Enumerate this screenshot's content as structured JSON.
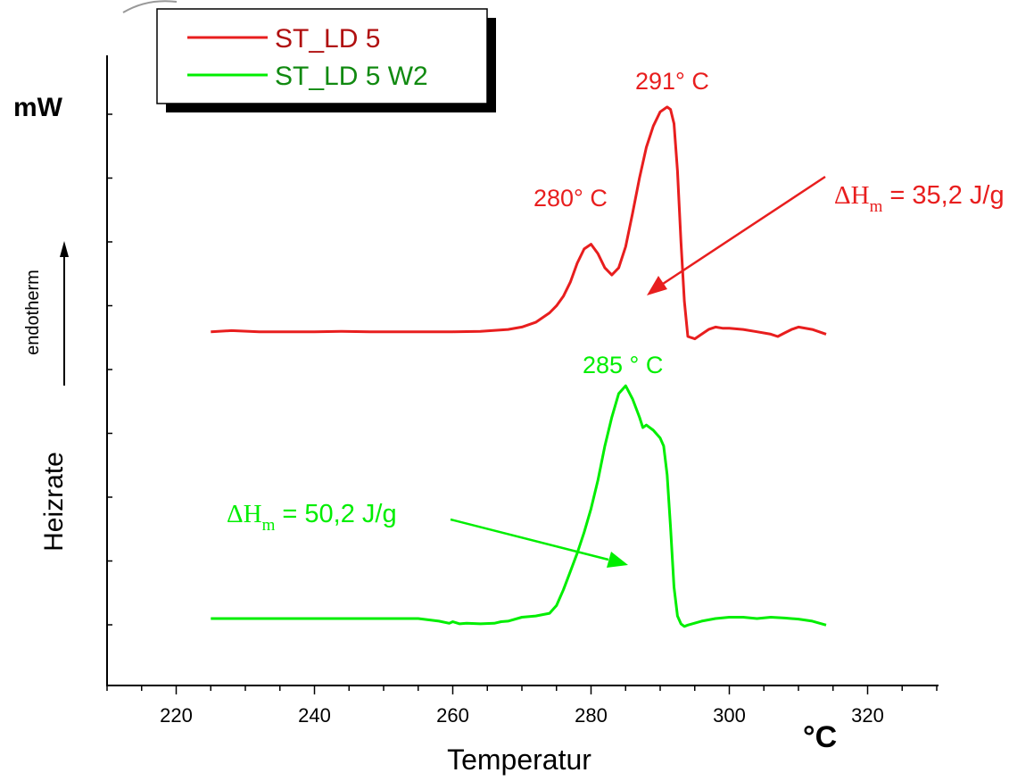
{
  "chart_data": {
    "type": "line",
    "xlabel": "Temperatur",
    "x_unit": "°C",
    "y_unit": "mW",
    "ylabel_left": "Heizrate",
    "endotherm_label": "endotherm",
    "xlim": [
      210,
      330
    ],
    "x_ticks": [
      220,
      240,
      260,
      280,
      300,
      320
    ],
    "y_axis_values": "none",
    "grid": false,
    "legend_position": "top-left",
    "series": [
      {
        "name": "ST_LD 5",
        "color": "#e81e1e",
        "x": [
          225,
          228,
          232,
          236,
          240,
          244,
          248,
          252,
          256,
          260,
          264,
          268,
          270,
          272,
          274,
          275,
          276,
          277,
          278,
          279,
          280,
          281,
          282,
          283,
          284,
          285,
          286,
          287,
          288,
          289,
          290,
          291,
          291.5,
          292,
          292.5,
          293,
          293.5,
          294,
          295,
          296,
          297,
          298,
          299,
          300,
          302,
          304,
          306,
          307,
          308,
          309,
          310,
          312,
          314
        ],
        "y": [
          0.02,
          0.025,
          0.02,
          0.02,
          0.02,
          0.022,
          0.02,
          0.02,
          0.02,
          0.02,
          0.022,
          0.03,
          0.04,
          0.06,
          0.1,
          0.13,
          0.17,
          0.23,
          0.31,
          0.37,
          0.39,
          0.35,
          0.29,
          0.26,
          0.29,
          0.38,
          0.52,
          0.67,
          0.8,
          0.89,
          0.95,
          0.97,
          0.96,
          0.9,
          0.7,
          0.4,
          0.15,
          0,
          -0.01,
          0.01,
          0.03,
          0.04,
          0.035,
          0.035,
          0.03,
          0.02,
          0.01,
          0.0,
          0.015,
          0.03,
          0.04,
          0.03,
          0.01
        ]
      },
      {
        "name": "ST_LD 5 W2",
        "color": "#00ee00",
        "x": [
          225,
          230,
          235,
          240,
          245,
          250,
          255,
          258,
          259.5,
          260,
          261,
          262,
          264,
          266,
          267,
          268,
          270,
          272,
          274,
          275,
          276,
          277,
          278,
          279,
          280,
          281,
          282,
          283,
          284,
          285,
          286,
          287,
          287.5,
          288,
          289,
          290,
          290.5,
          291,
          291.5,
          292,
          292.5,
          293,
          293.5,
          294,
          296,
          298,
          300,
          302,
          304,
          306,
          308,
          310,
          312,
          314
        ],
        "y": [
          0.0,
          0.0,
          0.0,
          0.0,
          0.0,
          0.0,
          0.0,
          -0.01,
          -0.018,
          -0.012,
          -0.02,
          -0.018,
          -0.02,
          -0.018,
          -0.012,
          -0.01,
          0.005,
          0.01,
          0.02,
          0.05,
          0.11,
          0.18,
          0.25,
          0.33,
          0.42,
          0.53,
          0.66,
          0.77,
          0.86,
          0.89,
          0.84,
          0.77,
          0.73,
          0.74,
          0.72,
          0.69,
          0.66,
          0.55,
          0.35,
          0.12,
          0.01,
          -0.02,
          -0.03,
          -0.025,
          -0.01,
          0.0,
          0.005,
          0.005,
          0.0,
          0.005,
          0.002,
          -0.002,
          -0.01,
          -0.025
        ]
      }
    ],
    "annotations": [
      {
        "id": "red_peak1",
        "text": "280° C",
        "color": "#e81e1e"
      },
      {
        "id": "red_peak2",
        "text": "291° C",
        "color": "#e81e1e"
      },
      {
        "id": "green_peak",
        "text": "285 ° C",
        "color": "#00ee00"
      },
      {
        "id": "red_dh",
        "prefix": "ΔH",
        "sub": "m",
        "value": " = 35,2 J/g",
        "color": "#e81e1e"
      },
      {
        "id": "green_dh",
        "prefix": "ΔH",
        "sub": "m",
        "value": " = 50,2 J/g",
        "color": "#00ee00"
      }
    ]
  }
}
